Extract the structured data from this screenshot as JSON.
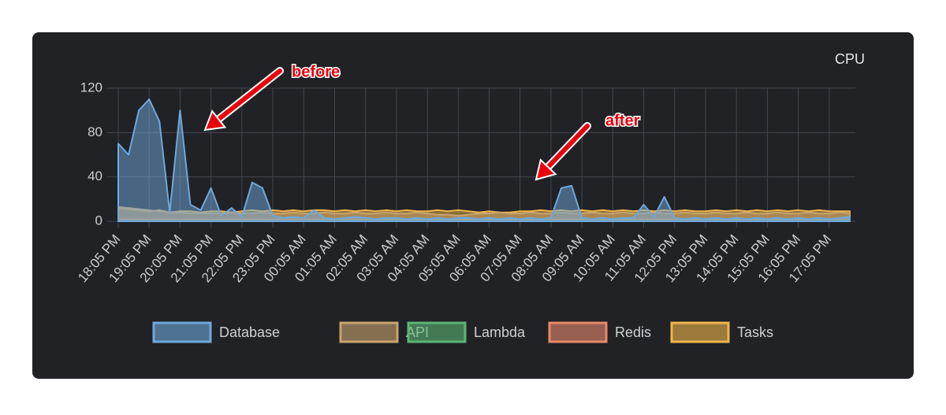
{
  "chart_data": {
    "type": "area",
    "title": "CPU",
    "categories": [
      "18:05 PM",
      null,
      null,
      "19:05 PM",
      null,
      null,
      "20:05 PM",
      null,
      null,
      "21:05 PM",
      null,
      null,
      "22:05 PM",
      null,
      null,
      "23:05 PM",
      null,
      null,
      "00:05 AM",
      null,
      null,
      "01:05 AM",
      null,
      null,
      "02:05 AM",
      null,
      null,
      "03:05 AM",
      null,
      null,
      "04:05 AM",
      null,
      null,
      "05:05 AM",
      null,
      null,
      "06:05 AM",
      null,
      null,
      "07:05 AM",
      null,
      null,
      "08:05 AM",
      null,
      null,
      "09:05 AM",
      null,
      null,
      "10:05 AM",
      null,
      null,
      "11:05 AM",
      null,
      null,
      "12:05 PM",
      null,
      null,
      "13:05 PM",
      null,
      null,
      "14:05 PM",
      null,
      null,
      "15:05 PM",
      null,
      null,
      "16:05 PM",
      null,
      null,
      "17:05 PM",
      null,
      null
    ],
    "series": [
      {
        "name": "Database",
        "color": "#6fa8dc",
        "values": [
          70,
          60,
          100,
          110,
          90,
          8,
          100,
          15,
          10,
          30,
          5,
          12,
          4,
          35,
          30,
          5,
          3,
          4,
          3,
          10,
          3,
          2,
          3,
          4,
          3,
          2,
          3,
          3,
          2,
          3,
          2,
          3,
          2,
          3,
          3,
          2,
          3,
          2,
          3,
          2,
          3,
          2,
          3,
          30,
          32,
          3,
          2,
          3,
          2,
          3,
          3,
          15,
          4,
          22,
          3,
          2,
          3,
          2,
          3,
          2,
          3,
          2,
          3,
          2,
          3,
          2,
          3,
          2,
          3,
          2,
          3,
          4
        ]
      },
      {
        "name": "API",
        "color": "#c9a46e",
        "values": [
          13,
          12,
          11,
          10,
          9,
          8,
          8,
          7,
          7,
          7,
          7,
          8,
          7,
          7,
          8,
          7,
          7,
          8,
          7,
          7,
          8,
          7,
          7,
          8,
          7,
          7,
          8,
          7,
          7,
          8,
          7,
          6,
          6,
          5,
          6,
          7,
          7,
          8,
          7,
          7,
          8,
          7,
          7,
          8,
          7,
          7,
          8,
          7,
          7,
          8,
          7,
          7,
          8,
          7,
          7,
          8,
          7,
          7,
          8,
          7,
          7,
          8,
          7,
          7,
          8,
          7,
          7,
          8,
          7,
          7,
          8,
          7
        ]
      },
      {
        "name": "Lambda",
        "color": "#5bb574",
        "values": [
          1,
          1,
          1,
          1,
          1,
          1,
          1,
          1,
          1,
          1,
          1,
          1,
          1,
          1,
          1,
          1,
          1,
          1,
          1,
          1,
          1,
          1,
          1,
          1,
          1,
          1,
          1,
          1,
          1,
          1,
          1,
          1,
          1,
          1,
          1,
          1,
          1,
          1,
          1,
          1,
          1,
          1,
          1,
          1,
          1,
          1,
          1,
          1,
          1,
          1,
          1,
          1,
          1,
          1,
          1,
          1,
          1,
          1,
          1,
          1,
          1,
          1,
          1,
          1,
          1,
          1,
          1,
          1,
          1,
          1,
          1,
          1
        ]
      },
      {
        "name": "Redis",
        "color": "#e8896a",
        "values": [
          2,
          2,
          2,
          2,
          2,
          2,
          2,
          2,
          2,
          2,
          2,
          2,
          2,
          2,
          2,
          2,
          2,
          2,
          2,
          2,
          2,
          2,
          2,
          2,
          2,
          2,
          2,
          2,
          2,
          2,
          2,
          2,
          2,
          2,
          2,
          2,
          2,
          2,
          2,
          2,
          2,
          2,
          2,
          2,
          2,
          2,
          2,
          2,
          2,
          2,
          2,
          2,
          2,
          2,
          2,
          2,
          2,
          2,
          2,
          2,
          2,
          2,
          2,
          2,
          2,
          2,
          2,
          2,
          2,
          2,
          2,
          2
        ]
      },
      {
        "name": "Tasks",
        "color": "#f0b64a",
        "values": [
          12,
          11,
          10,
          9,
          10,
          8,
          9,
          9,
          8,
          9,
          9,
          8,
          9,
          10,
          9,
          10,
          9,
          10,
          9,
          10,
          10,
          9,
          10,
          9,
          10,
          9,
          10,
          9,
          10,
          9,
          9,
          10,
          9,
          10,
          9,
          8,
          9,
          8,
          8,
          9,
          9,
          10,
          9,
          10,
          9,
          10,
          9,
          10,
          9,
          10,
          9,
          10,
          9,
          10,
          9,
          10,
          9,
          9,
          10,
          9,
          10,
          9,
          10,
          9,
          10,
          9,
          10,
          9,
          10,
          9,
          9,
          9
        ]
      }
    ],
    "ylim": [
      0,
      120
    ],
    "yticks": [
      0,
      40,
      80,
      120
    ],
    "grid": true,
    "legend": "bottom",
    "annotations": [
      {
        "text": "before",
        "index": 8
      },
      {
        "text": "after",
        "index": 40
      }
    ]
  }
}
